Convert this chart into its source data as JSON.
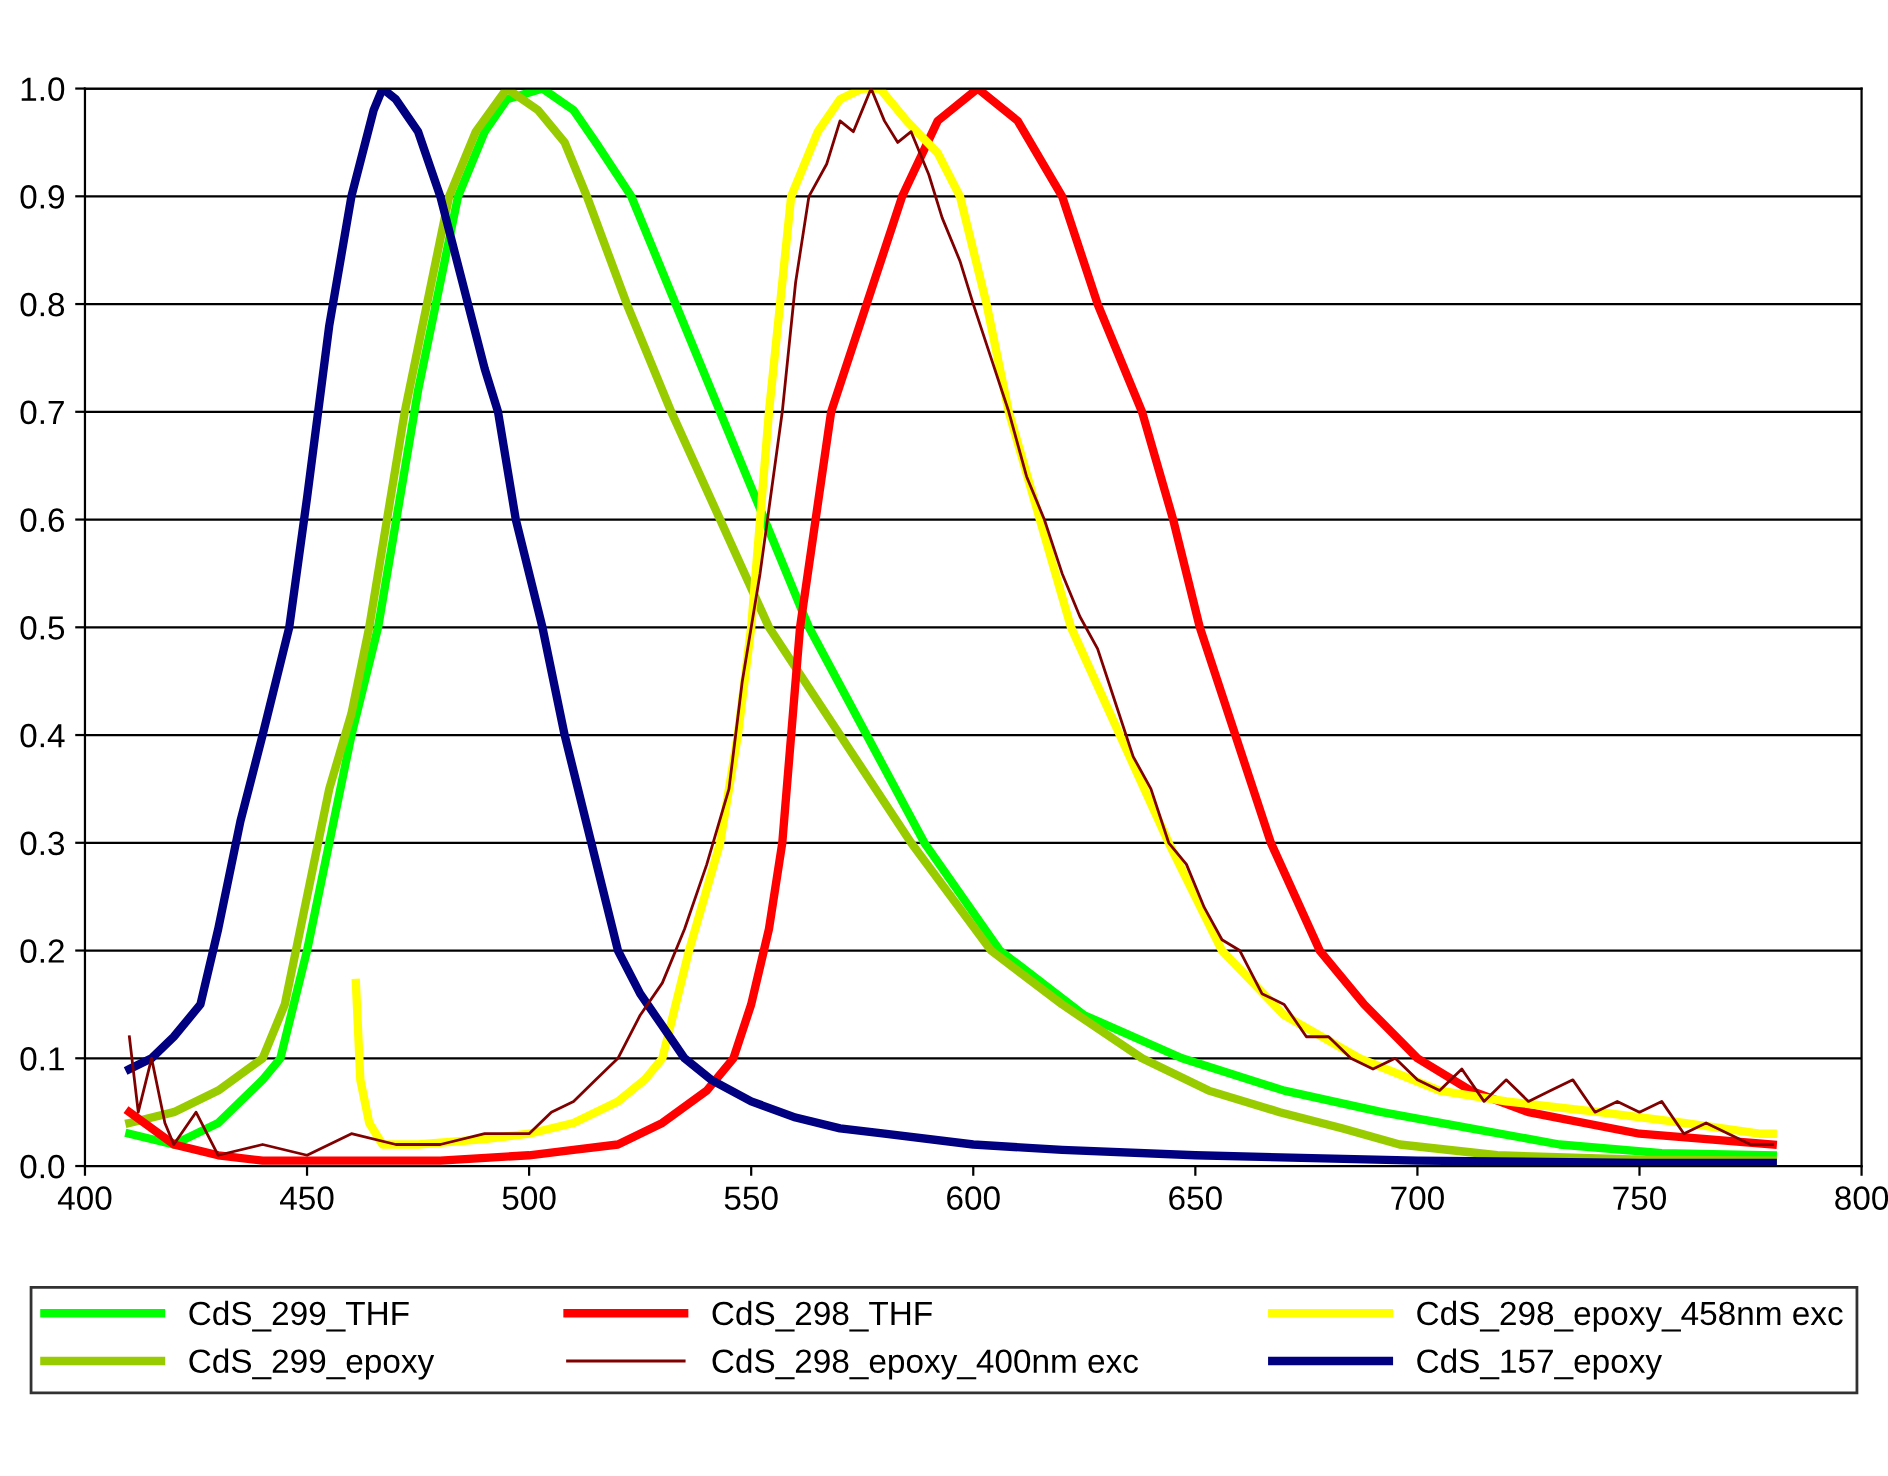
{
  "chart_data": {
    "type": "line",
    "xlim": [
      400,
      800
    ],
    "xticks": [
      400,
      450,
      500,
      550,
      600,
      650,
      700,
      750,
      800
    ],
    "ylim": [
      0.0,
      1.0
    ],
    "yticks": [
      {
        "value": 0,
        "label": "0.0"
      },
      0.1,
      0.2,
      0.3,
      0.4,
      0.5,
      0.6,
      0.7,
      0.8,
      0.9,
      {
        "value": 1,
        "label": "1.0"
      }
    ],
    "grid": "y",
    "legend": "bottom",
    "marker": "none",
    "line_style": "solid",
    "series": [
      {
        "name": "CdS_299_THF",
        "color": "#00ff00",
        "x": [
          410,
          420,
          430,
          440,
          444,
          450,
          455,
          460,
          466,
          475,
          484,
          490,
          495,
          503,
          510,
          515,
          523,
          533,
          543,
          553,
          563,
          576,
          589,
          606,
          625,
          647,
          670,
          692,
          712,
          732,
          755,
          780
        ],
        "values": [
          0.03,
          0.02,
          0.04,
          0.08,
          0.1,
          0.2,
          0.3,
          0.4,
          0.5,
          0.72,
          0.9,
          0.96,
          0.99,
          1.0,
          0.98,
          0.95,
          0.9,
          0.8,
          0.7,
          0.6,
          0.5,
          0.4,
          0.3,
          0.2,
          0.14,
          0.1,
          0.07,
          0.05,
          0.035,
          0.02,
          0.012,
          0.01
        ]
      },
      {
        "name": "CdS_299_epoxy",
        "color": "#99cc00",
        "x": [
          410,
          420,
          430,
          440,
          445,
          450,
          455,
          460,
          464,
          472,
          482,
          488,
          495,
          502,
          508,
          513,
          522,
          532,
          543,
          554,
          570,
          586,
          604,
          620,
          638,
          653,
          669,
          683,
          696,
          718,
          750,
          780
        ],
        "values": [
          0.04,
          0.05,
          0.07,
          0.1,
          0.15,
          0.25,
          0.35,
          0.42,
          0.5,
          0.7,
          0.9,
          0.96,
          1.0,
          0.98,
          0.95,
          0.9,
          0.8,
          0.7,
          0.6,
          0.5,
          0.4,
          0.3,
          0.2,
          0.15,
          0.1,
          0.07,
          0.05,
          0.035,
          0.02,
          0.01,
          0.006,
          0.005
        ]
      },
      {
        "name": "CdS_298_THF",
        "color": "#ff0000",
        "x": [
          410,
          420,
          430,
          440,
          460,
          480,
          500,
          510,
          520,
          530,
          540,
          546,
          550,
          554,
          557,
          561,
          568,
          576,
          584,
          592,
          601,
          610,
          620,
          628,
          638,
          645,
          651,
          659,
          667,
          678,
          688,
          700,
          712,
          725,
          750,
          780
        ],
        "values": [
          0.05,
          0.02,
          0.01,
          0.005,
          0.005,
          0.005,
          0.01,
          0.015,
          0.02,
          0.04,
          0.07,
          0.1,
          0.15,
          0.22,
          0.3,
          0.5,
          0.7,
          0.8,
          0.9,
          0.97,
          1.0,
          0.97,
          0.9,
          0.8,
          0.7,
          0.6,
          0.5,
          0.4,
          0.3,
          0.2,
          0.15,
          0.1,
          0.07,
          0.05,
          0.03,
          0.02
        ]
      },
      {
        "name": "CdS_298_epoxy_400nm exc",
        "color": "#800000",
        "x": [
          410,
          412,
          415,
          418,
          420,
          425,
          430,
          440,
          450,
          460,
          470,
          480,
          490,
          500,
          505,
          510,
          515,
          520,
          525,
          530,
          535,
          540,
          545,
          548,
          552,
          557,
          560,
          563,
          567,
          570,
          573,
          575,
          577,
          580,
          583,
          586,
          590,
          593,
          597,
          600,
          604,
          608,
          612,
          616,
          620,
          624,
          628,
          632,
          636,
          640,
          644,
          648,
          652,
          656,
          660,
          665,
          670,
          675,
          680,
          685,
          690,
          695,
          700,
          705,
          710,
          715,
          720,
          725,
          730,
          735,
          740,
          745,
          750,
          755,
          760,
          765,
          770,
          775,
          780
        ],
        "values": [
          0.12,
          0.05,
          0.1,
          0.04,
          0.02,
          0.05,
          0.01,
          0.02,
          0.01,
          0.03,
          0.02,
          0.02,
          0.03,
          0.03,
          0.05,
          0.06,
          0.08,
          0.1,
          0.14,
          0.17,
          0.22,
          0.28,
          0.35,
          0.45,
          0.55,
          0.7,
          0.82,
          0.9,
          0.93,
          0.97,
          0.96,
          0.98,
          1.0,
          0.97,
          0.95,
          0.96,
          0.92,
          0.88,
          0.84,
          0.8,
          0.75,
          0.7,
          0.64,
          0.6,
          0.55,
          0.51,
          0.48,
          0.43,
          0.38,
          0.35,
          0.3,
          0.28,
          0.24,
          0.21,
          0.2,
          0.16,
          0.15,
          0.12,
          0.12,
          0.1,
          0.09,
          0.1,
          0.08,
          0.07,
          0.09,
          0.06,
          0.08,
          0.06,
          0.07,
          0.08,
          0.05,
          0.06,
          0.05,
          0.06,
          0.03,
          0.04,
          0.03,
          0.02,
          0.02
        ]
      },
      {
        "name": "CdS_298_epoxy_458nm exc",
        "color": "#ffff00",
        "x": [
          461,
          462,
          464,
          467,
          475,
          490,
          500,
          510,
          520,
          526,
          530,
          536,
          543,
          547,
          550,
          554,
          559,
          565,
          570,
          575,
          579,
          585,
          592,
          597,
          603,
          608,
          615,
          622,
          633,
          644,
          656,
          670,
          687,
          705,
          720,
          741,
          760,
          777,
          780
        ],
        "values": [
          0.17,
          0.08,
          0.04,
          0.02,
          0.02,
          0.025,
          0.03,
          0.04,
          0.06,
          0.08,
          0.1,
          0.2,
          0.3,
          0.4,
          0.5,
          0.7,
          0.9,
          0.96,
          0.99,
          1.0,
          1.0,
          0.97,
          0.94,
          0.9,
          0.8,
          0.7,
          0.6,
          0.5,
          0.4,
          0.3,
          0.2,
          0.14,
          0.1,
          0.07,
          0.06,
          0.05,
          0.04,
          0.03,
          0.03
        ]
      },
      {
        "name": "CdS_157_epoxy",
        "color": "#000080",
        "x": [
          410,
          415,
          420,
          426,
          430,
          435,
          440,
          446,
          450,
          455,
          460,
          465,
          467,
          470,
          475,
          480,
          485,
          490,
          493,
          497,
          503,
          508,
          514,
          520,
          525,
          530,
          535,
          541,
          550,
          560,
          570,
          580,
          600,
          620,
          650,
          700,
          750,
          780
        ],
        "values": [
          0.09,
          0.1,
          0.12,
          0.15,
          0.22,
          0.32,
          0.4,
          0.5,
          0.62,
          0.78,
          0.9,
          0.98,
          1.0,
          0.99,
          0.96,
          0.9,
          0.82,
          0.74,
          0.7,
          0.6,
          0.5,
          0.4,
          0.3,
          0.2,
          0.16,
          0.13,
          0.1,
          0.08,
          0.06,
          0.045,
          0.035,
          0.03,
          0.02,
          0.015,
          0.01,
          0.005,
          0.003,
          0.003
        ]
      }
    ]
  }
}
